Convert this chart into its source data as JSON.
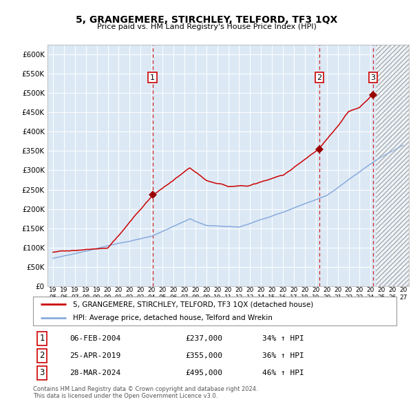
{
  "title": "5, GRANGEMERE, STIRCHLEY, TELFORD, TF3 1QX",
  "subtitle": "Price paid vs. HM Land Registry's House Price Index (HPI)",
  "ylim": [
    0,
    625000
  ],
  "yticks": [
    0,
    50000,
    100000,
    150000,
    200000,
    250000,
    300000,
    350000,
    400000,
    450000,
    500000,
    550000,
    600000
  ],
  "bg_color": "#dce9f5",
  "hpi_color": "#88aadd",
  "price_color": "#cc0000",
  "sale_marker_color": "#990000",
  "vline_color": "#cc0000",
  "legend_price_label": "5, GRANGEMERE, STIRCHLEY, TELFORD, TF3 1QX (detached house)",
  "legend_hpi_label": "HPI: Average price, detached house, Telford and Wrekin",
  "sales": [
    {
      "num": 1,
      "date_x": 2004.09,
      "price": 237000,
      "label": "06-FEB-2004",
      "pct": "34%",
      "dir": "↑"
    },
    {
      "num": 2,
      "date_x": 2019.32,
      "price": 355000,
      "label": "25-APR-2019",
      "pct": "36%",
      "dir": "↑"
    },
    {
      "num": 3,
      "date_x": 2024.23,
      "price": 495000,
      "label": "28-MAR-2024",
      "pct": "46%",
      "dir": "↑"
    }
  ],
  "xlim_start": 1994.5,
  "xlim_end": 2027.5,
  "current_year": 2024.5,
  "footer_line1": "Contains HM Land Registry data © Crown copyright and database right 2024.",
  "footer_line2": "This data is licensed under the Open Government Licence v3.0.",
  "hpi_anchors": [
    [
      1995.0,
      72000
    ],
    [
      2004.0,
      130000
    ],
    [
      2007.5,
      175000
    ],
    [
      2009.0,
      158000
    ],
    [
      2012.0,
      155000
    ],
    [
      2016.0,
      195000
    ],
    [
      2020.0,
      240000
    ],
    [
      2022.5,
      290000
    ],
    [
      2024.5,
      330000
    ],
    [
      2027.0,
      370000
    ]
  ],
  "price_anchors": [
    [
      1995.0,
      88000
    ],
    [
      2000.0,
      100000
    ],
    [
      2004.09,
      237000
    ],
    [
      2007.5,
      305000
    ],
    [
      2009.0,
      270000
    ],
    [
      2011.0,
      255000
    ],
    [
      2013.0,
      260000
    ],
    [
      2016.0,
      285000
    ],
    [
      2019.32,
      355000
    ],
    [
      2021.0,
      410000
    ],
    [
      2022.0,
      450000
    ],
    [
      2023.0,
      460000
    ],
    [
      2024.23,
      495000
    ]
  ]
}
